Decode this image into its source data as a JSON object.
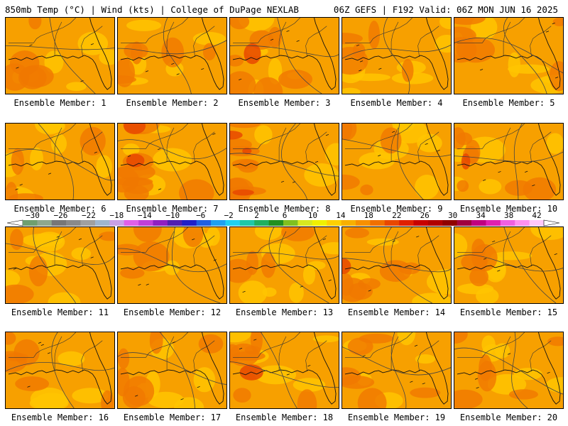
{
  "header": {
    "left": "850mb Temp (°C) | Wind (kts) | College of DuPage NEXLAB",
    "right": "06Z GEFS | F192 Valid: 06Z MON JUN 16 2025"
  },
  "panels": [
    {
      "label": "Ensemble Member: 1",
      "hot": 0.35
    },
    {
      "label": "Ensemble Member: 2",
      "hot": 0.55
    },
    {
      "label": "Ensemble Member: 3",
      "hot": 0.65
    },
    {
      "label": "Ensemble Member: 4",
      "hot": 0.25
    },
    {
      "label": "Ensemble Member: 5",
      "hot": 0.45
    },
    {
      "label": "Ensemble Member: 6",
      "hot": 0.2
    },
    {
      "label": "Ensemble Member: 7",
      "hot": 0.8
    },
    {
      "label": "Ensemble Member: 8",
      "hot": 0.9
    },
    {
      "label": "Ensemble Member: 9",
      "hot": 0.4
    },
    {
      "label": "Ensemble Member: 10",
      "hot": 0.6
    },
    {
      "label": "Ensemble Member: 11",
      "hot": 0.15
    },
    {
      "label": "Ensemble Member: 12",
      "hot": 0.35
    },
    {
      "label": "Ensemble Member: 13",
      "hot": 0.1
    },
    {
      "label": "Ensemble Member: 14",
      "hot": 0.6
    },
    {
      "label": "Ensemble Member: 15",
      "hot": 0.2
    },
    {
      "label": "Ensemble Member: 16",
      "hot": 0.55
    },
    {
      "label": "Ensemble Member: 17",
      "hot": 0.45
    },
    {
      "label": "Ensemble Member: 18",
      "hot": 0.6
    },
    {
      "label": "Ensemble Member: 19",
      "hot": 0.55
    },
    {
      "label": "Ensemble Member: 20",
      "hot": 0.45
    }
  ],
  "colorbar": {
    "ticks": [
      "-30",
      "-26",
      "-22",
      "-18",
      "-14",
      "-10",
      "-6",
      "-2",
      "2",
      "6",
      "10",
      "14",
      "18",
      "22",
      "26",
      "30",
      "34",
      "38",
      "42"
    ],
    "colors": [
      "#6f9f6f",
      "#8ea88e",
      "#777777",
      "#8a8a8a",
      "#a0a0a0",
      "#9fb6cf",
      "#c9a0e6",
      "#e060e6",
      "#c040d8",
      "#9020c0",
      "#5020b0",
      "#2020c8",
      "#2060e0",
      "#20a0f0",
      "#20d0f0",
      "#20c8a8",
      "#20b060",
      "#209020",
      "#80c020",
      "#d8e820",
      "#f0f000",
      "#ffd000",
      "#f8b000",
      "#f79000",
      "#f07000",
      "#e84800",
      "#e02000",
      "#c80000",
      "#b00000",
      "#900000",
      "#a00040",
      "#c00080",
      "#e020b0",
      "#f060e0",
      "#ff90f0",
      "#ffc8f8"
    ]
  }
}
